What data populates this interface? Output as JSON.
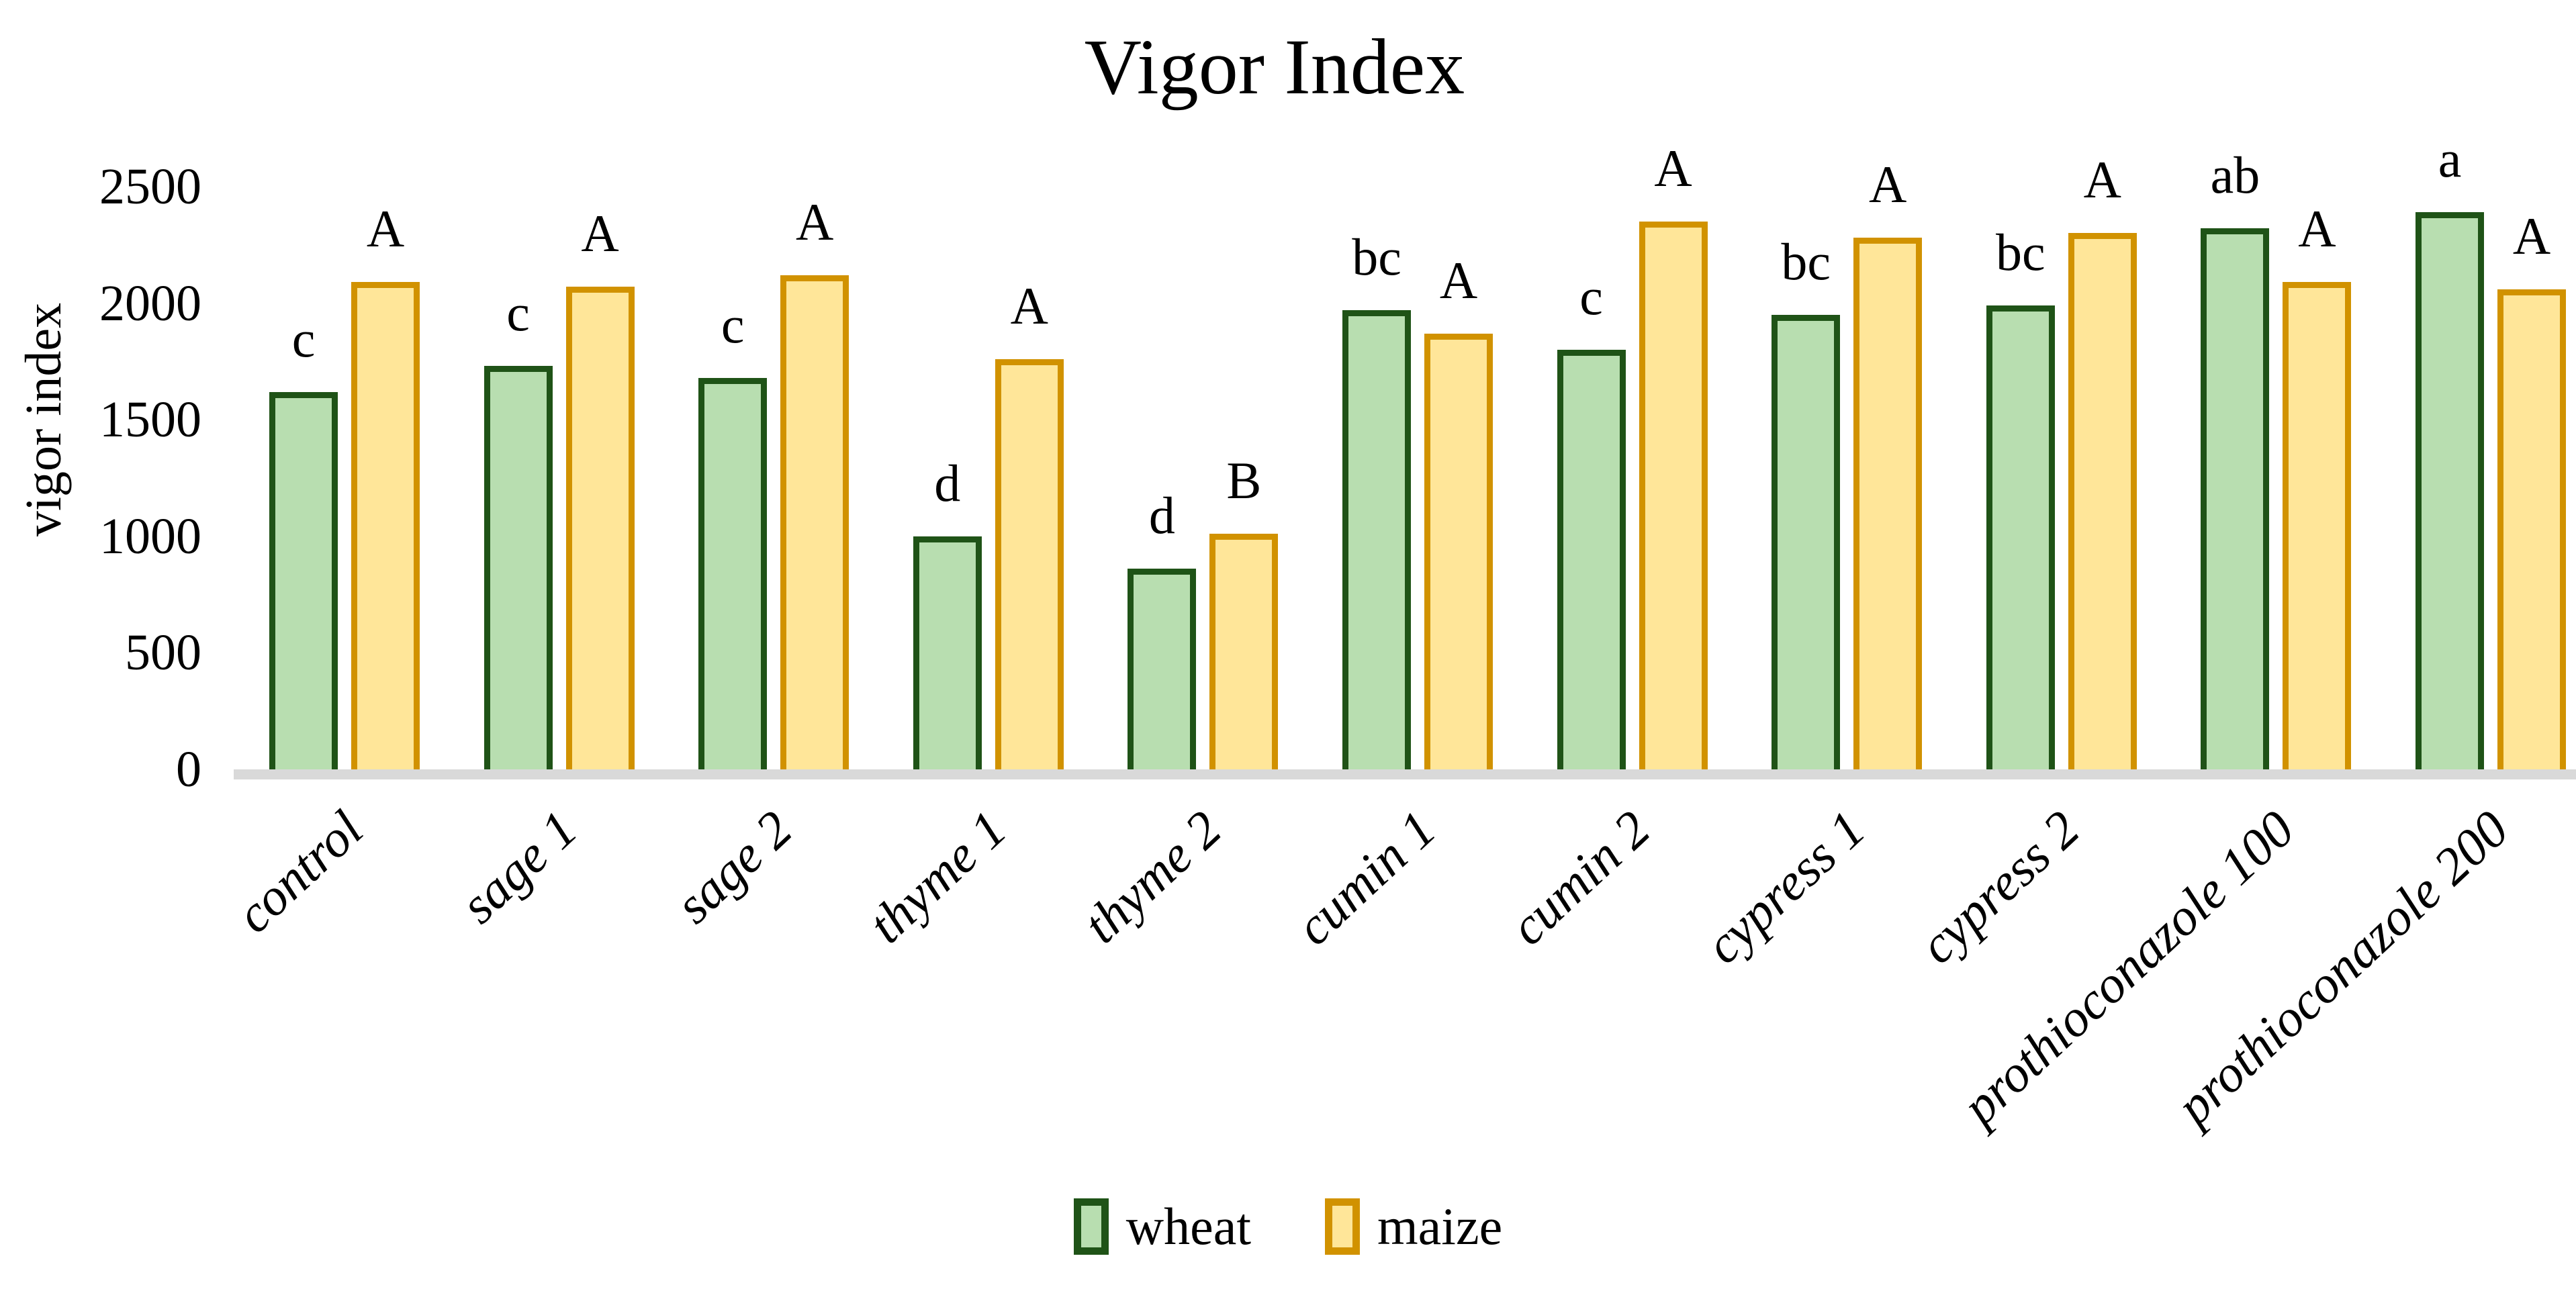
{
  "figure": {
    "title": "Vigor Index",
    "y_axis_title": "vigor index"
  },
  "chart_data": {
    "type": "bar",
    "title": "Vigor Index",
    "xlabel": "",
    "ylabel": "vigor index",
    "ylim": [
      0,
      2500
    ],
    "yticks": [
      0,
      500,
      1000,
      1500,
      2000,
      2500
    ],
    "grid": false,
    "legend_position": "bottom",
    "background_color": "#ffffff",
    "axis_line_color": "#d9d9d9",
    "text_color": "#000000",
    "categories": [
      "control",
      "sage 1",
      "sage 2",
      "thyme 1",
      "thyme 2",
      "cumin 1",
      "cumin 2",
      "cypress 1",
      "cypress 2",
      "prothioconazole 100",
      "prothioconazole 200"
    ],
    "series": [
      {
        "name": "wheat",
        "fill_color": "#b8deb0",
        "border_color": "#1f5317",
        "values": [
          1620,
          1730,
          1680,
          1000,
          860,
          1970,
          1800,
          1950,
          1990,
          2320,
          2390
        ],
        "significance_letters": [
          "c",
          "c",
          "c",
          "d",
          "d",
          "bc",
          "c",
          "bc",
          "bc",
          "ab",
          "a"
        ]
      },
      {
        "name": "maize",
        "fill_color": "#ffe699",
        "border_color": "#d19200",
        "values": [
          2090,
          2070,
          2120,
          1760,
          1010,
          1870,
          2350,
          2280,
          2300,
          2090,
          2060
        ],
        "significance_letters": [
          "A",
          "A",
          "A",
          "A",
          "B",
          "A",
          "A",
          "A",
          "A",
          "A",
          "A"
        ]
      }
    ]
  }
}
